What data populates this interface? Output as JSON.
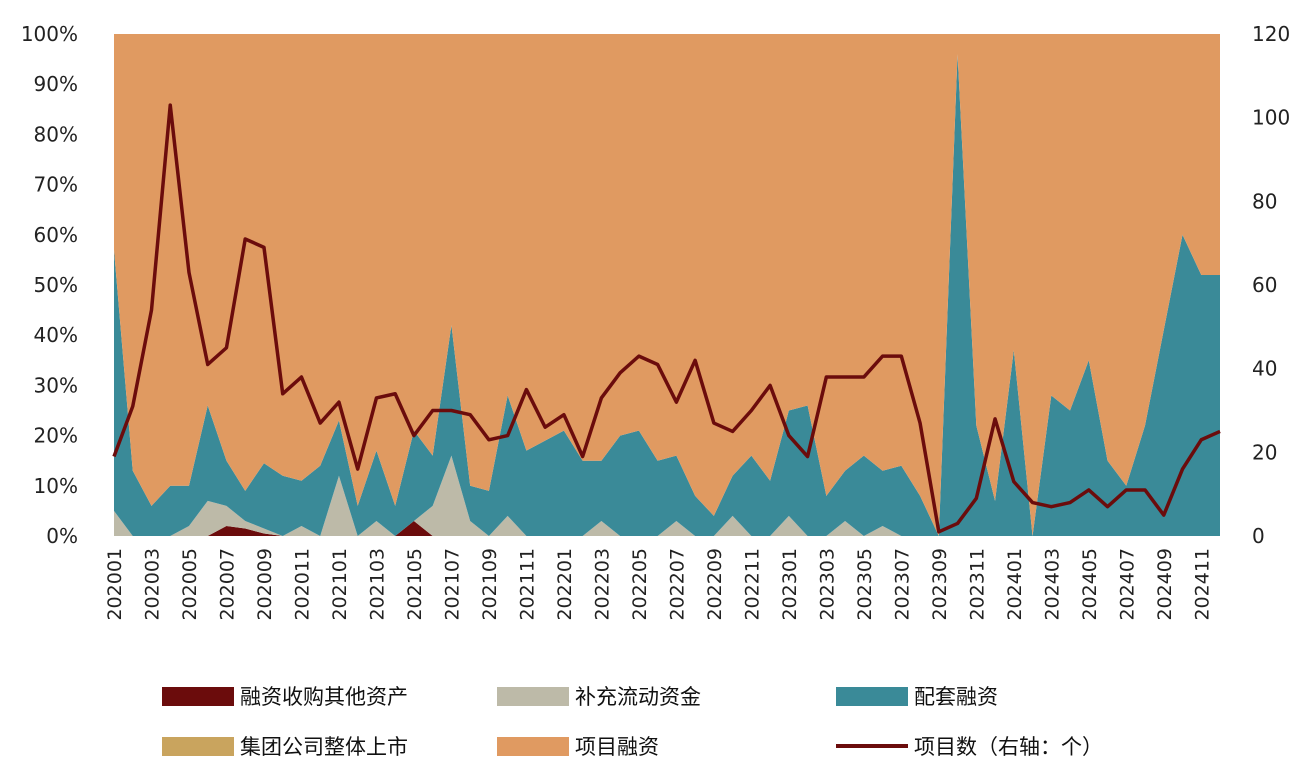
{
  "chart_data": {
    "type": "area",
    "stacked_percent": true,
    "x": [
      "202001",
      "202002",
      "202003",
      "202004",
      "202005",
      "202006",
      "202007",
      "202008",
      "202009",
      "202010",
      "202011",
      "202012",
      "202101",
      "202102",
      "202103",
      "202104",
      "202105",
      "202106",
      "202107",
      "202108",
      "202109",
      "202110",
      "202111",
      "202112",
      "202201",
      "202202",
      "202203",
      "202204",
      "202205",
      "202206",
      "202207",
      "202208",
      "202209",
      "202210",
      "202211",
      "202212",
      "202301",
      "202302",
      "202303",
      "202304",
      "202305",
      "202306",
      "202307",
      "202308",
      "202309",
      "202310",
      "202311",
      "202312",
      "202401",
      "202402",
      "202403",
      "202404",
      "202405",
      "202406",
      "202407",
      "202408",
      "202409",
      "202410",
      "202411",
      "202412"
    ],
    "x_tick_labels": [
      "202001",
      "202003",
      "202005",
      "202007",
      "202009",
      "202011",
      "202101",
      "202103",
      "202105",
      "202107",
      "202109",
      "202111",
      "202201",
      "202203",
      "202205",
      "202207",
      "202209",
      "202211",
      "202301",
      "202303",
      "202305",
      "202307",
      "202309",
      "202311",
      "202401",
      "202403",
      "202405",
      "202407",
      "202409",
      "202411"
    ],
    "y_left": {
      "min": 0,
      "max": 100,
      "ticks": [
        "0%",
        "10%",
        "20%",
        "30%",
        "40%",
        "50%",
        "60%",
        "70%",
        "80%",
        "90%",
        "100%"
      ]
    },
    "y_right": {
      "min": 0,
      "max": 120,
      "ticks": [
        "0",
        "20",
        "40",
        "60",
        "80",
        "100",
        "120"
      ]
    },
    "area_series": [
      {
        "name": "融资收购其他资产",
        "color": "#6b0c0c",
        "values": [
          0,
          0,
          0,
          0,
          0,
          0,
          2,
          1.5,
          0.5,
          0,
          0,
          0,
          0,
          0,
          0,
          0,
          3,
          0,
          0,
          0,
          0,
          0,
          0,
          0,
          0,
          0,
          0,
          0,
          0,
          0,
          0,
          0,
          0,
          0,
          0,
          0,
          0,
          0,
          0,
          0,
          0,
          0,
          0,
          0,
          0,
          0,
          0,
          0,
          0,
          0,
          0,
          0,
          0,
          0,
          0,
          0,
          0,
          0,
          0,
          0
        ]
      },
      {
        "name": "补充流动资金",
        "color": "#bdbaa8",
        "values": [
          5,
          0,
          0,
          0,
          2,
          7,
          4,
          1.5,
          1,
          0,
          2,
          0,
          12,
          0,
          3,
          0,
          0,
          6,
          16,
          3,
          0,
          4,
          0,
          0,
          0,
          0,
          3,
          0,
          0,
          0,
          3,
          0,
          0,
          4,
          0,
          0,
          4,
          0,
          0,
          3,
          0,
          2,
          0,
          0,
          0,
          0,
          0,
          0,
          0,
          0,
          0,
          0,
          0,
          0,
          0,
          0,
          0,
          0,
          0,
          0
        ]
      },
      {
        "name": "配套融资",
        "color": "#3a8a98",
        "values": [
          52,
          13,
          6,
          10,
          8,
          19,
          9,
          6,
          13,
          12,
          9,
          14,
          11,
          6,
          14,
          6,
          18,
          10,
          26,
          7,
          9,
          24,
          17,
          19,
          21,
          15,
          12,
          20,
          21,
          15,
          13,
          8,
          4,
          8,
          16,
          11,
          21,
          26,
          8,
          10,
          16,
          11,
          14,
          8,
          0,
          96,
          22,
          7,
          37,
          0,
          28,
          25,
          35,
          15,
          10,
          22,
          41,
          60,
          52,
          52
        ]
      },
      {
        "name": "集团公司整体上市",
        "color": "#c9a45e",
        "values": [
          0,
          0,
          0,
          0,
          0,
          0,
          0,
          0,
          0,
          0,
          0,
          0,
          0,
          0,
          0,
          0,
          0,
          0,
          0,
          0,
          0,
          0,
          0,
          0,
          0,
          0,
          0,
          0,
          0,
          0,
          0,
          0,
          0,
          0,
          0,
          0,
          0,
          0,
          0,
          0,
          0,
          0,
          0,
          0,
          0,
          0,
          0,
          0,
          0,
          0,
          0,
          0,
          0,
          0,
          0,
          0,
          0,
          0,
          0,
          0
        ]
      },
      {
        "name": "项目融资",
        "color": "#e09a61",
        "values": [
          43,
          87,
          94,
          90,
          90,
          74,
          85,
          91,
          85.5,
          88,
          89,
          86,
          77,
          94,
          83,
          94,
          79,
          84,
          58,
          90,
          91,
          72,
          83,
          81,
          79,
          85,
          85,
          80,
          79,
          85,
          84,
          92,
          96,
          88,
          84,
          89,
          75,
          74,
          92,
          87,
          84,
          87,
          86,
          92,
          100,
          4,
          78,
          93,
          63,
          100,
          72,
          75,
          65,
          85,
          90,
          78,
          59,
          40,
          48,
          48
        ]
      }
    ],
    "line_series": {
      "name": "项目数（右轴：个）",
      "color": "#6b0c0c",
      "axis": "right",
      "values": [
        19,
        31,
        54,
        103,
        63,
        41,
        45,
        71,
        69,
        34,
        38,
        27,
        32,
        16,
        33,
        34,
        24,
        30,
        30,
        29,
        23,
        24,
        35,
        26,
        29,
        19,
        33,
        39,
        43,
        41,
        32,
        42,
        27,
        25,
        30,
        36,
        24,
        19,
        38,
        38,
        38,
        43,
        43,
        27,
        1,
        3,
        9,
        28,
        13,
        8,
        7,
        8,
        11,
        7,
        11,
        11,
        5,
        16,
        23,
        25
      ]
    },
    "legend": [
      {
        "label": "融资收购其他资产",
        "color": "#6b0c0c",
        "kind": "box"
      },
      {
        "label": "补充流动资金",
        "color": "#bdbaa8",
        "kind": "box"
      },
      {
        "label": "配套融资",
        "color": "#3a8a98",
        "kind": "box"
      },
      {
        "label": "集团公司整体上市",
        "color": "#c9a45e",
        "kind": "box"
      },
      {
        "label": "项目融资",
        "color": "#e09a61",
        "kind": "box"
      },
      {
        "label": "项目数（右轴：个）",
        "color": "#6b0c0c",
        "kind": "line"
      }
    ],
    "legend_position": "bottom",
    "grid": false
  }
}
